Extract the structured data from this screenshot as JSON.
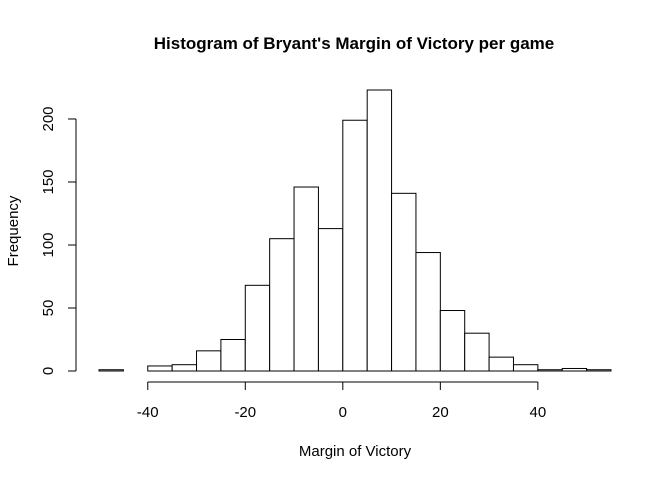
{
  "chart_data": {
    "type": "bar",
    "title": "Histogram of Bryant's Margin of Victory per game",
    "xlabel": "Margin of Victory",
    "ylabel": "Frequency",
    "bin_width": 5,
    "bins": [
      {
        "start": -50,
        "end": -45,
        "count": 1
      },
      {
        "start": -45,
        "end": -40,
        "count": 0
      },
      {
        "start": -40,
        "end": -35,
        "count": 4
      },
      {
        "start": -35,
        "end": -30,
        "count": 5
      },
      {
        "start": -30,
        "end": -25,
        "count": 16
      },
      {
        "start": -25,
        "end": -20,
        "count": 25
      },
      {
        "start": -20,
        "end": -15,
        "count": 68
      },
      {
        "start": -15,
        "end": -10,
        "count": 105
      },
      {
        "start": -10,
        "end": -5,
        "count": 146
      },
      {
        "start": -5,
        "end": 0,
        "count": 113
      },
      {
        "start": 0,
        "end": 5,
        "count": 199
      },
      {
        "start": 5,
        "end": 10,
        "count": 223
      },
      {
        "start": 10,
        "end": 15,
        "count": 141
      },
      {
        "start": 15,
        "end": 20,
        "count": 94
      },
      {
        "start": 20,
        "end": 25,
        "count": 48
      },
      {
        "start": 25,
        "end": 30,
        "count": 30
      },
      {
        "start": 30,
        "end": 35,
        "count": 11
      },
      {
        "start": 35,
        "end": 40,
        "count": 5
      },
      {
        "start": 40,
        "end": 45,
        "count": 1
      },
      {
        "start": 45,
        "end": 50,
        "count": 2
      },
      {
        "start": 50,
        "end": 55,
        "count": 1
      }
    ],
    "xlim": [
      -50,
      55
    ],
    "ylim": [
      0,
      223
    ],
    "x_ticks": [
      -40,
      -20,
      0,
      20,
      40
    ],
    "x_tick_labels": [
      "-40",
      "-20",
      "0",
      "20",
      "40"
    ],
    "y_ticks": [
      0,
      50,
      100,
      150,
      200
    ],
    "y_tick_labels": [
      "0",
      "50",
      "100",
      "150",
      "200"
    ],
    "grid": false,
    "bar_fill": "#ffffff",
    "bar_stroke": "#000000"
  }
}
